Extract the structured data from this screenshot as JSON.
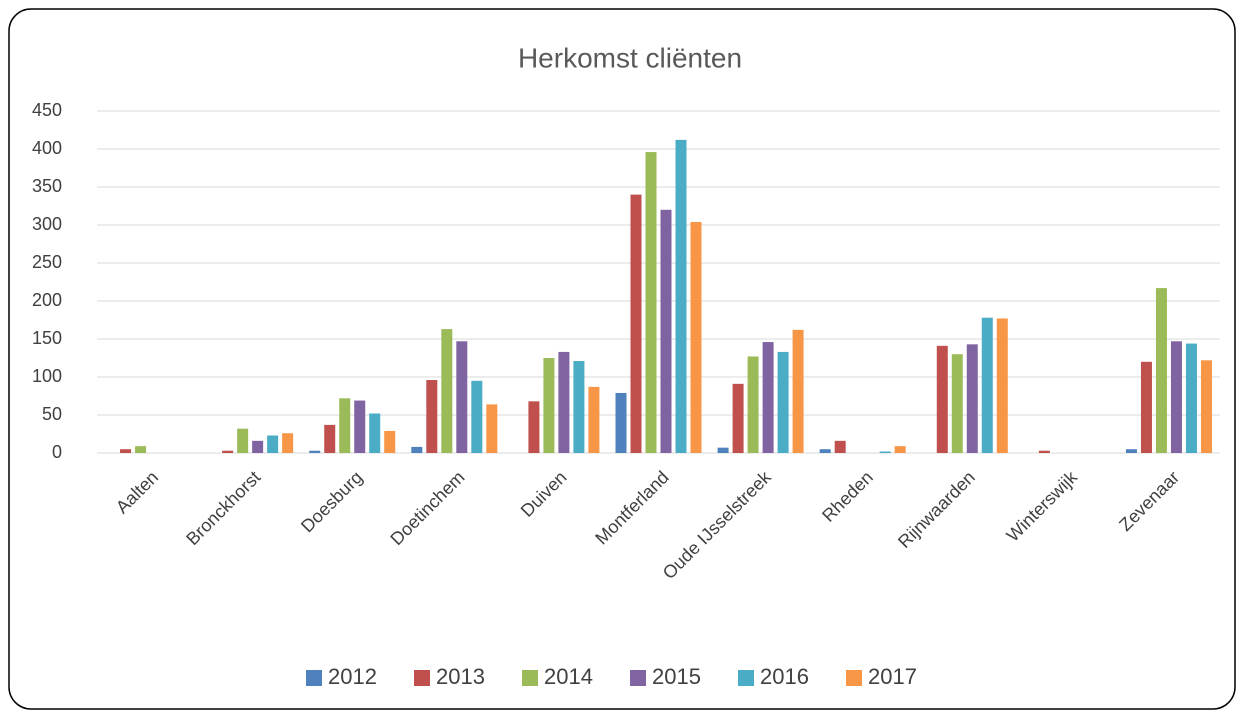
{
  "chart_data": {
    "type": "bar",
    "title": "Herkomst cliënten",
    "categories": [
      "Aalten",
      "Bronckhorst",
      "Doesburg",
      "Doetinchem",
      "Duiven",
      "Montferland",
      "Oude IJsselstreek",
      "Rheden",
      "Rijnwaarden",
      "Winterswijk",
      "Zevenaar"
    ],
    "series": [
      {
        "name": "2012",
        "color": "#4f81bd",
        "values": [
          0,
          0,
          3,
          8,
          0,
          79,
          7,
          5,
          0,
          0,
          5
        ]
      },
      {
        "name": "2013",
        "color": "#c0504d",
        "values": [
          5,
          3,
          37,
          96,
          68,
          340,
          91,
          16,
          141,
          3,
          120
        ]
      },
      {
        "name": "2014",
        "color": "#9bbb59",
        "values": [
          9,
          32,
          72,
          163,
          125,
          396,
          127,
          0,
          130,
          0,
          217
        ]
      },
      {
        "name": "2015",
        "color": "#8064a2",
        "values": [
          0,
          16,
          69,
          147,
          133,
          320,
          146,
          0,
          143,
          0,
          147
        ]
      },
      {
        "name": "2016",
        "color": "#4bacc6",
        "values": [
          0,
          23,
          52,
          95,
          121,
          412,
          133,
          2,
          178,
          0,
          144
        ]
      },
      {
        "name": "2017",
        "color": "#f79646",
        "values": [
          0,
          26,
          29,
          64,
          87,
          304,
          162,
          9,
          177,
          0,
          122
        ]
      }
    ],
    "ylim": [
      0,
      450
    ],
    "yticks": [
      0,
      50,
      100,
      150,
      200,
      250,
      300,
      350,
      400,
      450
    ],
    "grid": true,
    "legend": "bottom"
  }
}
